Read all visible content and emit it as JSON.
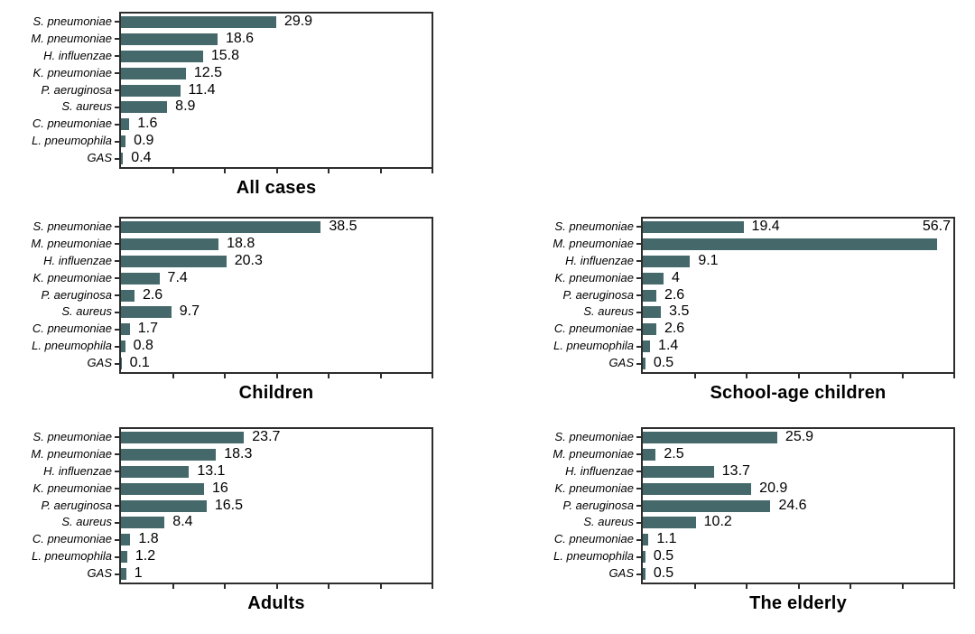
{
  "figure": {
    "background_color": "#ffffff",
    "bar_color": "#45696b",
    "frame_color": "#2d2d2d",
    "text_color": "#000000"
  },
  "chart_data": [
    {
      "type": "bar",
      "orientation": "horizontal",
      "title": "All cases",
      "categories": [
        "S. pneumoniae",
        "M. pneumoniae",
        "H. influenzae",
        "K. pneumoniae",
        "P. aeruginosa",
        "S. aureus",
        "C. pneumoniae",
        "L. pneumophila",
        "GAS"
      ],
      "values": [
        29.9,
        18.6,
        15.8,
        12.5,
        11.4,
        8.9,
        1.6,
        0.9,
        0.4
      ],
      "labels": [
        "29.9",
        "18.6",
        "15.8",
        "12.5",
        "11.4",
        "8.9",
        "1.6",
        "0.9",
        "0.4"
      ],
      "xlim": [
        0,
        60
      ],
      "tick_step": 10,
      "grid": false,
      "legend": null
    },
    {
      "type": "bar",
      "orientation": "horizontal",
      "title": "Children",
      "categories": [
        "S. pneumoniae",
        "M. pneumoniae",
        "H. influenzae",
        "K. pneumoniae",
        "P. aeruginosa",
        "S. aureus",
        "C. pneumoniae",
        "L. pneumophila",
        "GAS"
      ],
      "values": [
        38.5,
        18.8,
        20.3,
        7.4,
        2.6,
        9.7,
        1.7,
        0.8,
        0.1
      ],
      "labels": [
        "38.5",
        "18.8",
        "20.3",
        "7.4",
        "2.6",
        "9.7",
        "1.7",
        "0.8",
        "0.1"
      ],
      "xlim": [
        0,
        60
      ],
      "tick_step": 10,
      "grid": false,
      "legend": null
    },
    {
      "type": "bar",
      "orientation": "horizontal",
      "title": "School-age children",
      "categories": [
        "S. pneumoniae",
        "M. pneumoniae",
        "H. influenzae",
        "K. pneumoniae",
        "P. aeruginosa",
        "S. aureus",
        "C. pneumoniae",
        "L. pneumophila",
        "GAS"
      ],
      "values": [
        19.4,
        56.7,
        9.1,
        4,
        2.6,
        3.5,
        2.6,
        1.4,
        0.5
      ],
      "labels": [
        "19.4",
        "56.7",
        "9.1",
        "4",
        "2.6",
        "3.5",
        "2.6",
        "1.4",
        "0.5"
      ],
      "overflow_label": {
        "index": 1,
        "row": 0,
        "align": "right"
      },
      "xlim": [
        0,
        60
      ],
      "tick_step": 10,
      "grid": false,
      "legend": null
    },
    {
      "type": "bar",
      "orientation": "horizontal",
      "title": "Adults",
      "categories": [
        "S. pneumoniae",
        "M. pneumoniae",
        "H. influenzae",
        "K. pneumoniae",
        "P. aeruginosa",
        "S. aureus",
        "C. pneumoniae",
        "L. pneumophila",
        "GAS"
      ],
      "values": [
        23.7,
        18.3,
        13.1,
        16,
        16.5,
        8.4,
        1.8,
        1.2,
        1
      ],
      "labels": [
        "23.7",
        "18.3",
        "13.1",
        "16",
        "16.5",
        "8.4",
        "1.8",
        "1.2",
        "1"
      ],
      "xlim": [
        0,
        60
      ],
      "tick_step": 10,
      "grid": false,
      "legend": null
    },
    {
      "type": "bar",
      "orientation": "horizontal",
      "title": "The elderly",
      "categories": [
        "S. pneumoniae",
        "M. pneumoniae",
        "H. influenzae",
        "K. pneumoniae",
        "P. aeruginosa",
        "S. aureus",
        "C. pneumoniae",
        "L. pneumophila",
        "GAS"
      ],
      "values": [
        25.9,
        2.5,
        13.7,
        20.9,
        24.6,
        10.2,
        1.1,
        0.5,
        0.5
      ],
      "labels": [
        "25.9",
        "2.5",
        "13.7",
        "20.9",
        "24.6",
        "10.2",
        "1.1",
        "0.5",
        "0.5"
      ],
      "xlim": [
        0,
        60
      ],
      "tick_step": 10,
      "grid": false,
      "legend": null
    }
  ]
}
